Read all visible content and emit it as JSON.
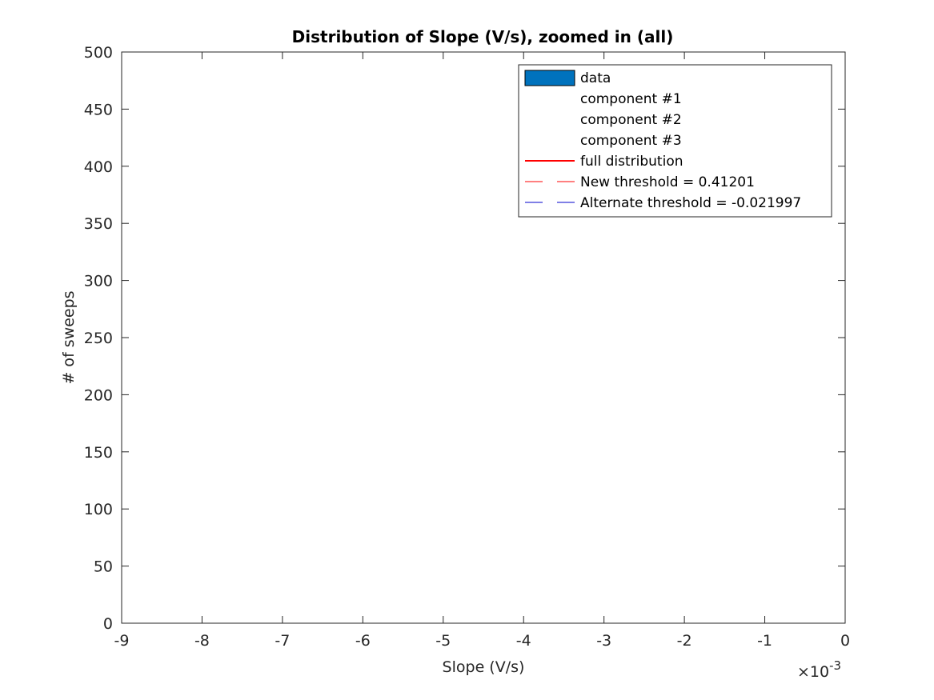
{
  "chart_data": {
    "type": "bar",
    "title": "Distribution of Slope (V/s), zoomed in (all)",
    "xlabel": "Slope (V/s)",
    "ylabel": "# of sweeps",
    "xlim": [
      -9,
      0
    ],
    "ylim": [
      0,
      500
    ],
    "x_ticks": [
      -9,
      -8,
      -7,
      -6,
      -5,
      -4,
      -3,
      -2,
      -1,
      0
    ],
    "y_ticks": [
      0,
      50,
      100,
      150,
      200,
      250,
      300,
      350,
      400,
      450,
      500
    ],
    "x_exponent_prefix": "×10",
    "x_exponent_power": "-3",
    "grid": false,
    "legend_position": "top-right",
    "series": [],
    "legend": [
      {
        "label": "data",
        "style": "patch",
        "color": "#0072BD"
      },
      {
        "label": "component #1",
        "style": "none",
        "color": "#ffffff"
      },
      {
        "label": "component #2",
        "style": "none",
        "color": "#ffffff"
      },
      {
        "label": "component #3",
        "style": "none",
        "color": "#ffffff"
      },
      {
        "label": "full distribution",
        "style": "solid",
        "color": "#ff0000"
      },
      {
        "label": "New threshold = 0.41201",
        "style": "dashed",
        "color": "#ff0000"
      },
      {
        "label": "Alternate threshold = -0.021997",
        "style": "dashed",
        "color": "#0000cd"
      }
    ]
  }
}
